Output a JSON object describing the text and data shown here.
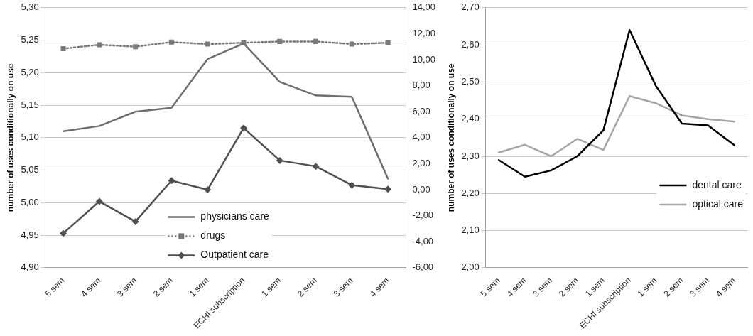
{
  "chart_data": [
    {
      "type": "line",
      "ylabel": "number of uses conditionally on use",
      "legend": "bottom",
      "grid": "y",
      "categories": [
        "5 sem",
        "4 sem",
        "3 sem",
        "2 sem",
        "1 sem",
        "ECHI subscription",
        "1 sem",
        "2 sem",
        "3 sem",
        "4 sem"
      ],
      "ylim": [
        4.9,
        5.3
      ],
      "yticks": [
        {
          "value": 4.9,
          "label": "4,90"
        },
        {
          "value": 4.95,
          "label": "4,95"
        },
        {
          "value": 5.0,
          "label": "5,00"
        },
        {
          "value": 5.05,
          "label": "5,05"
        },
        {
          "value": 5.1,
          "label": "5,10"
        },
        {
          "value": 5.15,
          "label": "5,15"
        },
        {
          "value": 5.2,
          "label": "5,20"
        },
        {
          "value": 5.25,
          "label": "5,25"
        },
        {
          "value": 5.3,
          "label": "5,30"
        }
      ],
      "y2lim": [
        -6,
        14
      ],
      "y2ticks": [
        {
          "value": -6,
          "label": "-6,00"
        },
        {
          "value": -4,
          "label": "-4,00"
        },
        {
          "value": -2,
          "label": "-2,00"
        },
        {
          "value": 0,
          "label": "0,00"
        },
        {
          "value": 2,
          "label": "2,00"
        },
        {
          "value": 4,
          "label": "4,00"
        },
        {
          "value": 6,
          "label": "6,00"
        },
        {
          "value": 8,
          "label": "8,00"
        },
        {
          "value": 10,
          "label": "10,00"
        },
        {
          "value": 12,
          "label": "12,00"
        },
        {
          "value": 14,
          "label": "14,00"
        }
      ],
      "series": [
        {
          "name": "physicians care",
          "color": "#6e6e6e",
          "marker": "none",
          "line_style": "solid",
          "values": [
            5.11,
            5.118,
            5.14,
            5.146,
            5.221,
            5.245,
            5.186,
            5.165,
            5.163,
            5.037
          ]
        },
        {
          "name": "drugs",
          "color": "#7a7a7a",
          "marker": "square",
          "line_style": "dotted",
          "axis": "y2",
          "values": [
            10.85,
            11.15,
            11.0,
            11.35,
            11.2,
            11.3,
            11.4,
            11.4,
            11.2,
            11.3
          ]
        },
        {
          "name": "Outpatient care",
          "color": "#505050",
          "marker": "diamond",
          "line_style": "solid",
          "values": [
            4.953,
            5.002,
            4.971,
            5.034,
            5.02,
            5.115,
            5.065,
            5.056,
            5.027,
            5.021
          ]
        }
      ]
    },
    {
      "type": "line",
      "ylabel": "number of uses conditionally on use",
      "legend": "right",
      "grid": "y",
      "categories": [
        "5 sem",
        "4 sem",
        "3 sem",
        "2 sem",
        "1 sem",
        "ECHI subscription",
        "1 sem",
        "2 sem",
        "3 sem",
        "4 sem"
      ],
      "ylim": [
        2.0,
        2.7
      ],
      "yticks": [
        {
          "value": 2.0,
          "label": "2,00"
        },
        {
          "value": 2.1,
          "label": "2,10"
        },
        {
          "value": 2.2,
          "label": "2,20"
        },
        {
          "value": 2.3,
          "label": "2,30"
        },
        {
          "value": 2.4,
          "label": "2,40"
        },
        {
          "value": 2.5,
          "label": "2,50"
        },
        {
          "value": 2.6,
          "label": "2,60"
        },
        {
          "value": 2.7,
          "label": "2,70"
        }
      ],
      "series": [
        {
          "name": "dental care",
          "color": "#000000",
          "marker": "none",
          "line_style": "solid",
          "values": [
            2.29,
            2.245,
            2.262,
            2.3,
            2.37,
            2.64,
            2.49,
            2.388,
            2.383,
            2.33
          ]
        },
        {
          "name": "optical care",
          "color": "#a6a6a6",
          "marker": "none",
          "line_style": "solid",
          "values": [
            2.31,
            2.331,
            2.3,
            2.347,
            2.317,
            2.462,
            2.443,
            2.41,
            2.4,
            2.393
          ]
        }
      ]
    }
  ]
}
